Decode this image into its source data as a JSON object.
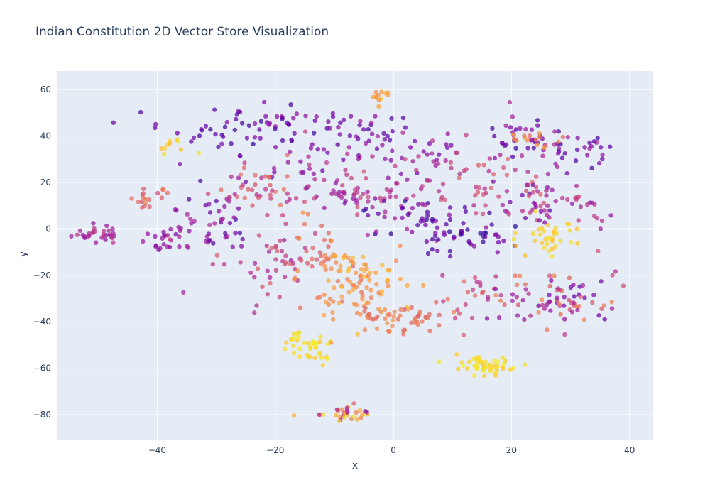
{
  "chart_data": {
    "type": "scatter",
    "title": "Indian Constitution 2D Vector Store Visualization",
    "xlabel": "x",
    "ylabel": "y",
    "xlim": [
      -57,
      44
    ],
    "ylim": [
      -91,
      68
    ],
    "xticks": [
      -40,
      -20,
      0,
      20,
      40
    ],
    "yticks": [
      -80,
      -60,
      -40,
      -20,
      0,
      20,
      40,
      60
    ],
    "grid": true,
    "colorscale": [
      "#0d0887",
      "#46039f",
      "#7201a8",
      "#9c179e",
      "#bd3786",
      "#d8576b",
      "#ed7953",
      "#fb9f3a",
      "#fdca26",
      "#f0f921"
    ],
    "clusters": [
      {
        "cx": -50,
        "cy": -2,
        "sx": 2.2,
        "sy": 2.2,
        "n": 30,
        "c": [
          0.3,
          0.45
        ]
      },
      {
        "cx": -42,
        "cy": 14,
        "sx": 2.0,
        "sy": 2.0,
        "n": 18,
        "c": [
          0.5,
          0.7
        ]
      },
      {
        "cx": -38,
        "cy": -6,
        "sx": 2.5,
        "sy": 3.5,
        "n": 28,
        "c": [
          0.25,
          0.45
        ]
      },
      {
        "cx": -37,
        "cy": 37,
        "sx": 2.0,
        "sy": 2.0,
        "n": 10,
        "c": [
          0.85,
          0.95
        ]
      },
      {
        "cx": -30,
        "cy": 5,
        "sx": 4.0,
        "sy": 9.0,
        "n": 45,
        "c": [
          0.1,
          0.4
        ]
      },
      {
        "cx": -30,
        "cy": 40,
        "sx": 5.0,
        "sy": 5.0,
        "n": 30,
        "c": [
          0.1,
          0.3
        ]
      },
      {
        "cx": -22,
        "cy": 18,
        "sx": 4.0,
        "sy": 5.0,
        "n": 40,
        "c": [
          0.4,
          0.65
        ]
      },
      {
        "cx": -22,
        "cy": -15,
        "sx": 4.0,
        "sy": 8.0,
        "n": 40,
        "c": [
          0.35,
          0.6
        ]
      },
      {
        "cx": -20,
        "cy": 45,
        "sx": 5.0,
        "sy": 5.0,
        "n": 40,
        "c": [
          0.05,
          0.35
        ]
      },
      {
        "cx": -14,
        "cy": 25,
        "sx": 4.0,
        "sy": 8.0,
        "n": 35,
        "c": [
          0.2,
          0.5
        ]
      },
      {
        "cx": -14,
        "cy": -10,
        "sx": 3.0,
        "sy": 8.0,
        "n": 35,
        "c": [
          0.55,
          0.75
        ]
      },
      {
        "cx": -13,
        "cy": -52,
        "sx": 1.8,
        "sy": 3.0,
        "n": 28,
        "c": [
          0.88,
          0.98
        ]
      },
      {
        "cx": -17,
        "cy": -48,
        "sx": 1.2,
        "sy": 2.0,
        "n": 12,
        "c": [
          0.9,
          0.98
        ]
      },
      {
        "cx": -8,
        "cy": -79,
        "sx": 2.2,
        "sy": 1.6,
        "n": 35,
        "c": [
          0.3,
          0.95
        ]
      },
      {
        "cx": -7,
        "cy": 15,
        "sx": 5.0,
        "sy": 5.0,
        "n": 45,
        "c": [
          0.3,
          0.55
        ]
      },
      {
        "cx": -5,
        "cy": 40,
        "sx": 4.0,
        "sy": 5.0,
        "n": 30,
        "c": [
          0.1,
          0.35
        ]
      },
      {
        "cx": -6,
        "cy": -22,
        "sx": 4.0,
        "sy": 8.0,
        "n": 90,
        "c": [
          0.65,
          0.85
        ]
      },
      {
        "cx": -2,
        "cy": 57,
        "sx": 1.5,
        "sy": 1.5,
        "n": 12,
        "c": [
          0.7,
          0.9
        ]
      },
      {
        "cx": -3,
        "cy": -38,
        "sx": 4.0,
        "sy": 3.0,
        "n": 30,
        "c": [
          0.6,
          0.75
        ]
      },
      {
        "cx": 3,
        "cy": 5,
        "sx": 5.0,
        "sy": 5.0,
        "n": 45,
        "c": [
          0.05,
          0.4
        ]
      },
      {
        "cx": 5,
        "cy": 30,
        "sx": 5.0,
        "sy": 6.0,
        "n": 40,
        "c": [
          0.2,
          0.5
        ]
      },
      {
        "cx": 5,
        "cy": -38,
        "sx": 3.0,
        "sy": 3.0,
        "n": 25,
        "c": [
          0.55,
          0.7
        ]
      },
      {
        "cx": 12,
        "cy": -3,
        "sx": 4.0,
        "sy": 4.0,
        "n": 45,
        "c": [
          0.05,
          0.3
        ]
      },
      {
        "cx": 13,
        "cy": 20,
        "sx": 4.0,
        "sy": 8.0,
        "n": 30,
        "c": [
          0.4,
          0.6
        ]
      },
      {
        "cx": 14,
        "cy": -30,
        "sx": 4.0,
        "sy": 6.0,
        "n": 25,
        "c": [
          0.4,
          0.65
        ]
      },
      {
        "cx": 16,
        "cy": -59,
        "sx": 2.5,
        "sy": 2.0,
        "n": 50,
        "c": [
          0.88,
          0.98
        ]
      },
      {
        "cx": 22,
        "cy": 38,
        "sx": 4.0,
        "sy": 6.0,
        "n": 45,
        "c": [
          0.1,
          0.4
        ]
      },
      {
        "cx": 25,
        "cy": 12,
        "sx": 4.0,
        "sy": 6.0,
        "n": 50,
        "c": [
          0.2,
          0.6
        ]
      },
      {
        "cx": 27,
        "cy": -2,
        "sx": 2.5,
        "sy": 4.0,
        "n": 35,
        "c": [
          0.85,
          0.95
        ]
      },
      {
        "cx": 28,
        "cy": -30,
        "sx": 5.0,
        "sy": 6.0,
        "n": 80,
        "c": [
          0.2,
          0.7
        ]
      },
      {
        "cx": 31,
        "cy": 33,
        "sx": 3.0,
        "sy": 4.0,
        "n": 25,
        "c": [
          0.1,
          0.4
        ]
      },
      {
        "cx": 34,
        "cy": 8,
        "sx": 2.0,
        "sy": 3.0,
        "n": 15,
        "c": [
          0.3,
          0.5
        ]
      },
      {
        "cx": 25,
        "cy": 38,
        "sx": 2.5,
        "sy": 2.0,
        "n": 15,
        "c": [
          0.6,
          0.8
        ]
      }
    ]
  }
}
